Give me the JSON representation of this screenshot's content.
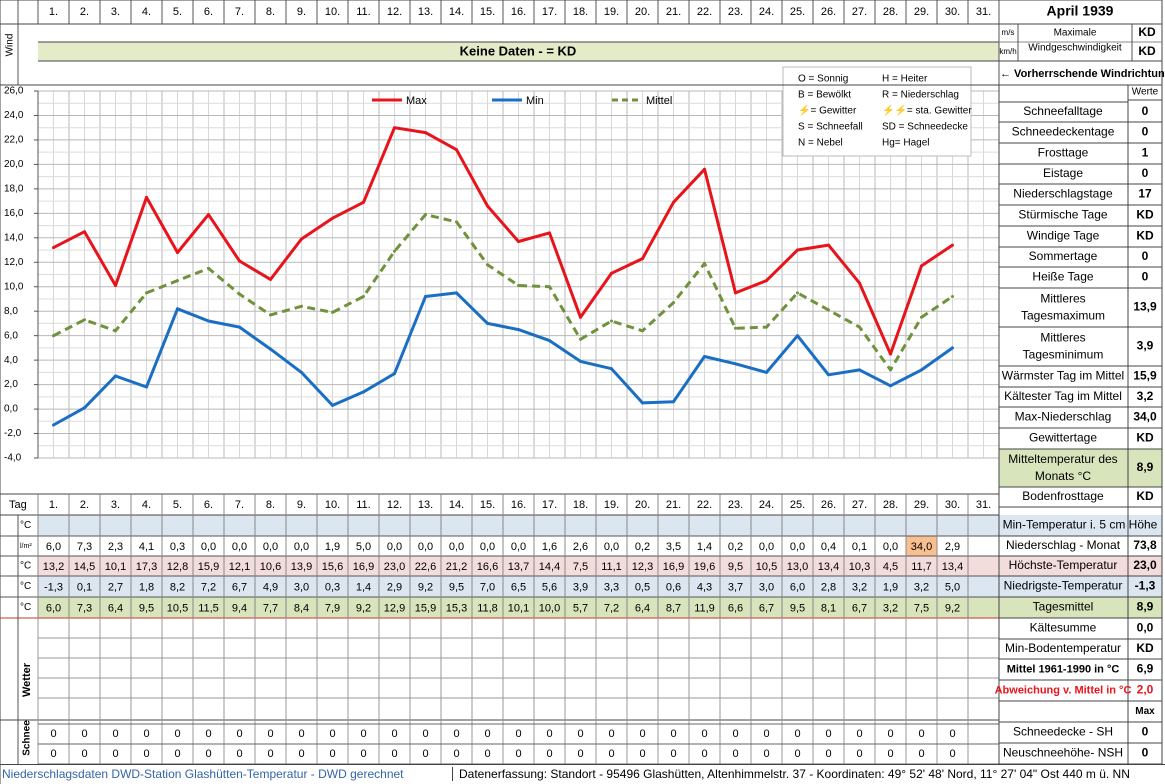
{
  "header": {
    "title": "April 1939",
    "wind_side_label": "Wind",
    "unit_ms": "m/s",
    "unit_kmh": "km/h",
    "max_wind_label_1": "Maximale",
    "max_wind_label_2": "Windgeschwindigkeit",
    "max_wind_ms": "KD",
    "max_wind_kmh": "KD",
    "no_data_banner": "Keine Daten -  = KD",
    "prevailing_wind": "← Vorherrschende Windrichtung"
  },
  "days": [
    "1.",
    "2.",
    "3.",
    "4.",
    "5.",
    "6.",
    "7.",
    "8.",
    "9.",
    "10.",
    "11.",
    "12.",
    "13.",
    "14.",
    "15.",
    "16.",
    "17.",
    "18.",
    "19.",
    "20.",
    "21.",
    "22.",
    "23.",
    "24.",
    "25.",
    "26.",
    "27.",
    "28.",
    "29.",
    "30.",
    "31."
  ],
  "legend_codes": [
    [
      "O = Sonnig",
      "H = Heiter"
    ],
    [
      "B = Bewölkt",
      "R = Niederschlag"
    ],
    [
      "⚡= Gewitter",
      "⚡⚡= sta. Gewitter"
    ],
    [
      "S = Schneefall",
      "SD = Schneedecke"
    ],
    [
      "N = Nebel",
      "Hg= Hagel"
    ]
  ],
  "chart_data": {
    "type": "line",
    "x": [
      1,
      2,
      3,
      4,
      5,
      6,
      7,
      8,
      9,
      10,
      11,
      12,
      13,
      14,
      15,
      16,
      17,
      18,
      19,
      20,
      21,
      22,
      23,
      24,
      25,
      26,
      27,
      28,
      29,
      30
    ],
    "ylim": [
      -4,
      26
    ],
    "y_ticks": [
      "-4,0",
      "-2,0",
      "0,0",
      "2,0",
      "4,0",
      "6,0",
      "8,0",
      "10,0",
      "12,0",
      "14,0",
      "16,0",
      "18,0",
      "20,0",
      "22,0",
      "24,0",
      "26,0"
    ],
    "grid": true,
    "legend_position": "top",
    "series": [
      {
        "name": "Max",
        "color": "#e8141b",
        "style": "solid",
        "values": [
          13.2,
          14.5,
          10.1,
          17.3,
          12.8,
          15.9,
          12.1,
          10.6,
          13.9,
          15.6,
          16.9,
          23.0,
          22.6,
          21.2,
          16.6,
          13.7,
          14.4,
          7.5,
          11.1,
          12.3,
          16.9,
          19.6,
          9.5,
          10.5,
          13.0,
          13.4,
          10.3,
          4.5,
          11.7,
          13.4
        ]
      },
      {
        "name": "Min",
        "color": "#1a6fc4",
        "style": "solid",
        "values": [
          -1.3,
          0.1,
          2.7,
          1.8,
          8.2,
          7.2,
          6.7,
          4.9,
          3.0,
          0.3,
          1.4,
          2.9,
          9.2,
          9.5,
          7.0,
          6.5,
          5.6,
          3.9,
          3.3,
          0.5,
          0.6,
          4.3,
          3.7,
          3.0,
          6.0,
          2.8,
          3.2,
          1.9,
          3.2,
          5.0
        ]
      },
      {
        "name": "Mittel",
        "color": "#71923d",
        "style": "dashed",
        "values": [
          6.0,
          7.3,
          6.4,
          9.5,
          10.5,
          11.5,
          9.4,
          7.7,
          8.4,
          7.9,
          9.2,
          12.9,
          15.9,
          15.3,
          11.8,
          10.1,
          10.0,
          5.7,
          7.2,
          6.4,
          8.7,
          11.9,
          6.6,
          6.7,
          9.5,
          8.1,
          6.7,
          3.2,
          7.5,
          9.2
        ]
      }
    ]
  },
  "table": {
    "tag_label": "Tag",
    "rows": [
      {
        "unit": "°C",
        "kind": "blank",
        "values": []
      },
      {
        "unit": "l/m²",
        "kind": "precip",
        "values": [
          "6,0",
          "7,3",
          "2,3",
          "4,1",
          "0,3",
          "0,0",
          "0,0",
          "0,0",
          "0,0",
          "1,9",
          "5,0",
          "0,0",
          "0,0",
          "0,0",
          "0,0",
          "0,0",
          "1,6",
          "2,6",
          "0,0",
          "0,2",
          "3,5",
          "1,4",
          "0,2",
          "0,0",
          "0,0",
          "0,4",
          "0,1",
          "0,0",
          "34,0",
          "2,9",
          ""
        ]
      },
      {
        "unit": "°C",
        "kind": "max",
        "values": [
          "13,2",
          "14,5",
          "10,1",
          "17,3",
          "12,8",
          "15,9",
          "12,1",
          "10,6",
          "13,9",
          "15,6",
          "16,9",
          "23,0",
          "22,6",
          "21,2",
          "16,6",
          "13,7",
          "14,4",
          "7,5",
          "11,1",
          "12,3",
          "16,9",
          "19,6",
          "9,5",
          "10,5",
          "13,0",
          "13,4",
          "10,3",
          "4,5",
          "11,7",
          "13,4",
          ""
        ]
      },
      {
        "unit": "°C",
        "kind": "min",
        "values": [
          "-1,3",
          "0,1",
          "2,7",
          "1,8",
          "8,2",
          "7,2",
          "6,7",
          "4,9",
          "3,0",
          "0,3",
          "1,4",
          "2,9",
          "9,2",
          "9,5",
          "7,0",
          "6,5",
          "5,6",
          "3,9",
          "3,3",
          "0,5",
          "0,6",
          "4,3",
          "3,7",
          "3,0",
          "6,0",
          "2,8",
          "3,2",
          "1,9",
          "3,2",
          "5,0",
          ""
        ]
      },
      {
        "unit": "°C",
        "kind": "mean",
        "values": [
          "6,0",
          "7,3",
          "6,4",
          "9,5",
          "10,5",
          "11,5",
          "9,4",
          "7,7",
          "8,4",
          "7,9",
          "9,2",
          "12,9",
          "15,9",
          "15,3",
          "11,8",
          "10,1",
          "10,0",
          "5,7",
          "7,2",
          "6,4",
          "8,7",
          "11,9",
          "6,6",
          "6,7",
          "9,5",
          "8,1",
          "6,7",
          "3,2",
          "7,5",
          "9,2",
          ""
        ]
      }
    ],
    "wetter_label": "Wetter",
    "schnee_label": "Schnee",
    "snow_rows": [
      [
        "0",
        "0",
        "0",
        "0",
        "0",
        "0",
        "0",
        "0",
        "0",
        "0",
        "0",
        "0",
        "0",
        "0",
        "0",
        "0",
        "0",
        "0",
        "0",
        "0",
        "0",
        "0",
        "0",
        "0",
        "0",
        "0",
        "0",
        "0",
        "0",
        "0",
        ""
      ],
      [
        "0",
        "0",
        "0",
        "0",
        "0",
        "0",
        "0",
        "0",
        "0",
        "0",
        "0",
        "0",
        "0",
        "0",
        "0",
        "0",
        "0",
        "0",
        "0",
        "0",
        "0",
        "0",
        "0",
        "0",
        "0",
        "0",
        "0",
        "0",
        "0",
        "0",
        ""
      ]
    ]
  },
  "stats": {
    "werte_label": "Werte",
    "items": [
      {
        "label": "Schneefalltage",
        "value": "0"
      },
      {
        "label": "Schneedeckentage",
        "value": "0"
      },
      {
        "label": "Frosttage",
        "value": "1"
      },
      {
        "label": "Eistage",
        "value": "0"
      },
      {
        "label": "Niederschlagstage",
        "value": "17"
      },
      {
        "label": "Stürmische Tage",
        "value": "KD"
      },
      {
        "label": "Windige Tage",
        "value": "KD"
      },
      {
        "label": "Sommertage",
        "value": "0"
      },
      {
        "label": "Heiße Tage",
        "value": "0"
      },
      {
        "label": "Mittleres Tagesmaximum",
        "value": "13,9"
      },
      {
        "label": "Mittleres Tagesminimum",
        "value": "3,9"
      },
      {
        "label": "Wärmster Tag im Mittel",
        "value": "15,9"
      },
      {
        "label": "Kältester Tag im Mittel",
        "value": "3,2"
      },
      {
        "label": "Max-Niederschlag",
        "value": "34,0"
      },
      {
        "label": "Gewittertage",
        "value": "KD"
      },
      {
        "label": "Mitteltemperatur des Monats °C",
        "value": "8,9"
      },
      {
        "label": "Bodenfrosttage",
        "value": "KD"
      }
    ],
    "lower": [
      {
        "label": "Min-Temperatur i. 5 cm Höhe",
        "value": ""
      },
      {
        "label": "Niederschlag - Monat",
        "value": "73,8"
      },
      {
        "label": "Höchste-Temperatur",
        "value": "23,0"
      },
      {
        "label": "Niedrigste-Temperatur",
        "value": "-1,3"
      },
      {
        "label": "Tagesmittel",
        "value": "8,9"
      },
      {
        "label": "Kältesumme",
        "value": "0,0"
      },
      {
        "label": "Min-Bodentemperatur",
        "value": "KD"
      },
      {
        "label": "Mittel 1961-1990 in °C",
        "value": "6,9"
      },
      {
        "label": "Abweichung v. Mittel in °C",
        "value": "2,0"
      },
      {
        "label": "",
        "value": "Max"
      },
      {
        "label": "Schneedecke -   SH",
        "value": "0"
      },
      {
        "label": "Neuschneehöhe- NSH",
        "value": "0"
      }
    ]
  },
  "footer": {
    "left": "Niederschlagsdaten DWD-Station Glashütten-Temperatur -  DWD gerechnet",
    "right": "Datenerfassung: Standort -  95496  Glashütten, Altenhimmelstr. 37 - Koordinaten: 49° 52' 48' Nord,  11° 27' 04\" Ost  440 m ü. NN"
  },
  "colors": {
    "banner": "#e4ebc8",
    "unit_row": "#dce6f1",
    "max_row": "#f3dcdc",
    "min_row": "#dce6f1",
    "mean_row": "#d8e4bc",
    "precip_highlight": "#f9bf8f",
    "footer_left": "#3465a4",
    "deviation": "#e8141b"
  }
}
